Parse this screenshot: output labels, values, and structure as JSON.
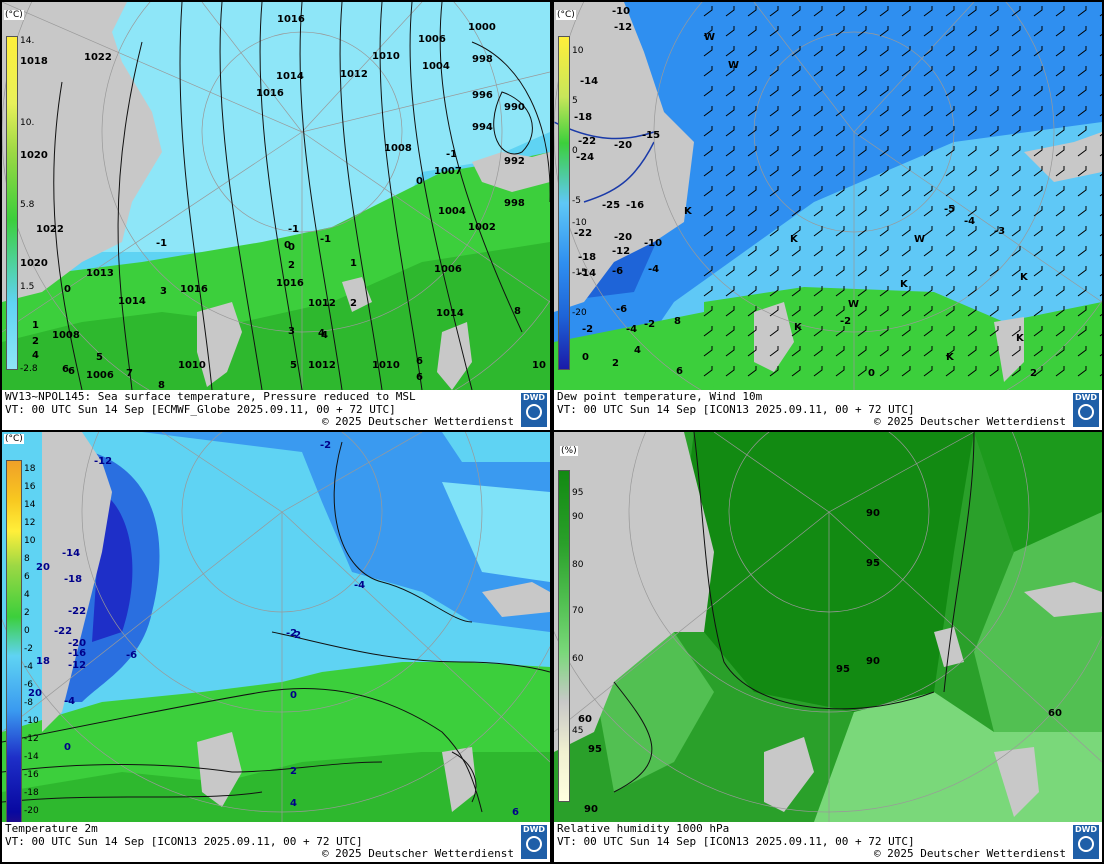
{
  "panels": [
    {
      "id": "sst",
      "unit": "(°C)",
      "legend_ticks": [
        "14.",
        "10.",
        "5.8",
        "1.5",
        "-2.8"
      ],
      "caption_line1": "WV13~NPOL145: Sea surface temperature,  Pressure reduced to MSL",
      "caption_line2": "VT: 00 UTC Sun  14 Sep [ECMWF_Globe 2025.09.11, 00 + 72 UTC]",
      "copyright": "© 2025 Deutscher Wetterdienst",
      "map_labels": [
        "1016",
        "1000",
        "1006",
        "1010",
        "1004",
        "998",
        "1014",
        "1012",
        "996",
        "990",
        "994",
        "1016",
        "1022",
        "1018",
        "992",
        "1008",
        "1007",
        "998",
        "1020",
        "1004",
        "1002",
        "1022",
        "1020",
        "1006",
        "1013",
        "1016",
        "1014",
        "1016",
        "1012",
        "1008",
        "1014",
        "1010",
        "1012",
        "1010",
        "1006",
        "0",
        "-1",
        "0",
        "2",
        "1",
        "3",
        "2",
        "4",
        "5",
        "6",
        "7",
        "8",
        "3",
        "4",
        "5",
        "6",
        "6",
        "8",
        "10",
        "1",
        "2",
        "4",
        "6",
        "-1",
        "-1",
        "0",
        "-1",
        "0"
      ]
    },
    {
      "id": "dewpoint",
      "unit": "(°C)",
      "legend_ticks": [
        "10",
        "5",
        "0",
        "-5",
        "-10",
        "-15",
        "-20"
      ],
      "caption_line1": "Dew point temperature, Wind 10m",
      "caption_line2": "VT: 00 UTC Sun  14 Sep [ICON13 2025.09.11,  00 + 72 UTC]",
      "copyright": "© 2025 Deutscher Wetterdienst",
      "map_labels": [
        "-10",
        "-12",
        "-14",
        "-18",
        "-22",
        "-24",
        "-20",
        "-15",
        "-16",
        "-25",
        "-20",
        "-22",
        "-18",
        "-14",
        "-12",
        "-10",
        "-6",
        "-4",
        "-2",
        "0",
        "2",
        "4",
        "6",
        "8",
        "-2",
        "-4",
        "-6",
        "-5",
        "-3",
        "-4",
        "-2",
        "0",
        "2",
        "K",
        "K",
        "K",
        "K",
        "W",
        "W",
        "W",
        "W",
        "K",
        "K",
        "K"
      ]
    },
    {
      "id": "t2m",
      "unit": "(°C)",
      "legend_ticks": [
        "18",
        "16",
        "14",
        "12",
        "10",
        "8",
        "6",
        "4",
        "2",
        "0",
        "-2",
        "-4",
        "-6",
        "-8",
        "-10",
        "-12",
        "-14",
        "-16",
        "-18",
        "-20",
        "-22",
        "-24"
      ],
      "caption_line1": "Temperature 2m",
      "caption_line2": "VT: 00 UTC Sun  14 Sep [ICON13 2025.09.11, 00 + 72 UTC]",
      "copyright": "© 2025 Deutscher Wetterdienst",
      "map_labels": [
        "-2",
        "-12",
        "-14",
        "-18",
        "-22",
        "-20",
        "-16",
        "-12",
        "-6",
        "-4",
        "-2",
        "0",
        "2",
        "4",
        "6",
        "0",
        "-4",
        "-2",
        "-22",
        "20",
        "18",
        "20"
      ]
    },
    {
      "id": "rh",
      "unit": "(%)",
      "legend_ticks": [
        "95",
        "90",
        "80",
        "70",
        "60",
        "45"
      ],
      "caption_line1": "Relative humidity 1000 hPa",
      "caption_line2": "VT: 00 UTC Sun  14 Sep [ICON13 2025.09.11,  00 + 72 UTC]",
      "copyright": "© 2025 Deutscher Wetterdienst",
      "map_labels": [
        "90",
        "95",
        "95",
        "90",
        "60",
        "60",
        "95",
        "90"
      ]
    }
  ],
  "logo_text": "DWD",
  "colors": {
    "land": "#c8c8c8",
    "sea_cold": "#5fd3f3",
    "sea_light": "#8ee6f8",
    "green": "#3ccf3c",
    "dark_green": "#128a12",
    "blue": "#2f8ff0"
  }
}
